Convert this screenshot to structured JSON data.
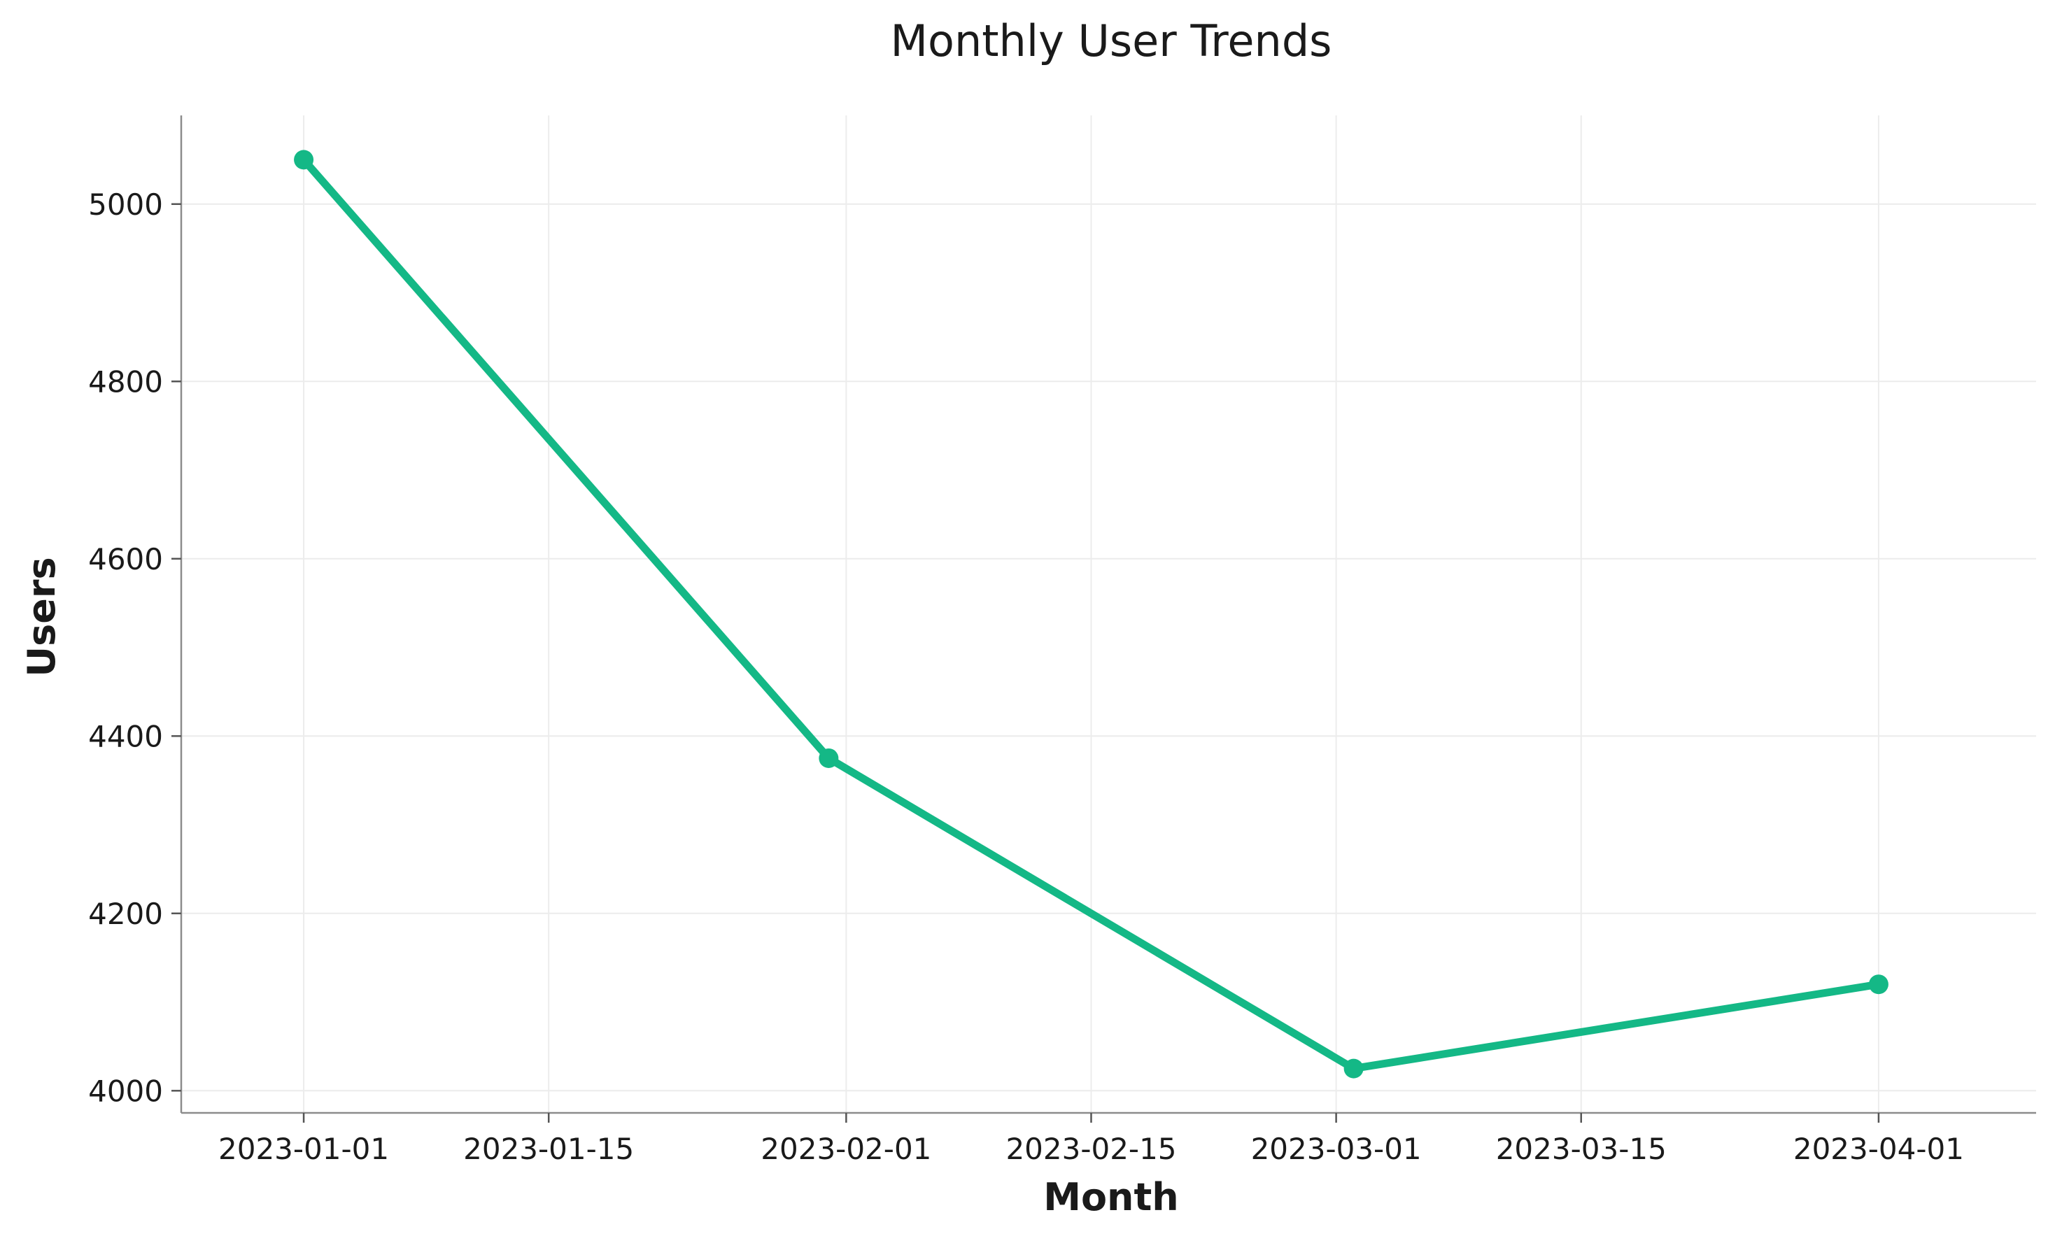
{
  "chart_data": {
    "type": "line",
    "title": "Monthly User Trends",
    "xlabel": "Month",
    "ylabel": "Users",
    "x_ticks": [
      "2023-01-01",
      "2023-01-15",
      "2023-02-01",
      "2023-02-15",
      "2023-03-01",
      "2023-03-15",
      "2023-04-01"
    ],
    "y_ticks": [
      4000,
      4200,
      4400,
      4600,
      4800,
      5000
    ],
    "xlim": [
      "2022-12-25",
      "2023-04-10"
    ],
    "ylim": [
      3975,
      5100
    ],
    "grid": true,
    "legend": "none",
    "color": "#14b886",
    "series": [
      {
        "x": [
          "2023-01-01",
          "2023-01-31",
          "2023-03-02",
          "2023-04-01"
        ],
        "values": [
          5050,
          4375,
          4025,
          4120
        ]
      }
    ]
  }
}
